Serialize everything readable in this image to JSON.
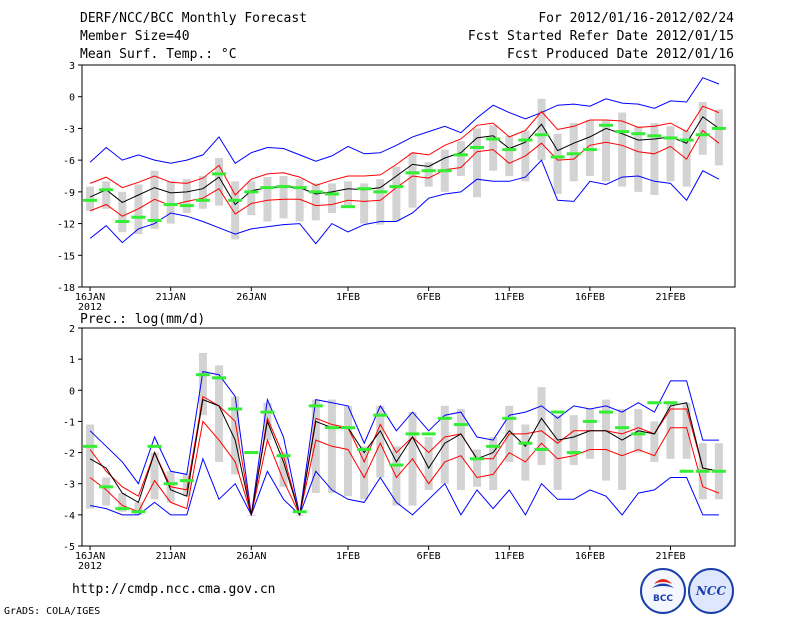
{
  "header": {
    "title": "DERF/NCC/BCC Monthly Forecast",
    "member_size": "Member Size=40",
    "variable": "Mean Surf. Temp.: °C",
    "period": "For 2012/01/16-2012/02/24",
    "started": "Fcst Started Refer Date 2012/01/15",
    "produced": "Fcst Produced Date 2012/01/16"
  },
  "footer": {
    "url": "http://cmdp.ncc.cma.gov.cn",
    "grads": "GrADS: COLA/IGES",
    "logo_bcc": "BCC",
    "logo_ncc": "NCC"
  },
  "colors": {
    "mean": "#000000",
    "member_envelope": "#0000ff",
    "spread": "#ff0000",
    "box": "#d3d3d3",
    "median": "#33ee33"
  },
  "chart_data": [
    {
      "type": "box",
      "title": "Mean Surf. Temp.: °C",
      "ylabel": "°C",
      "ylim": [
        -18,
        3
      ],
      "yticks": [
        3,
        0,
        -3,
        -6,
        -9,
        -12,
        -15,
        -18
      ],
      "xticks": [
        {
          "day": 0,
          "label": "16JAN"
        },
        {
          "day": 5,
          "label": "21JAN"
        },
        {
          "day": 10,
          "label": "26JAN"
        },
        {
          "day": 16,
          "label": "1FEB"
        },
        {
          "day": 21,
          "label": "6FEB"
        },
        {
          "day": 26,
          "label": "11FEB"
        },
        {
          "day": 31,
          "label": "16FEB"
        },
        {
          "day": 36,
          "label": "21FEB"
        }
      ],
      "year_label": "2012",
      "series": [
        {
          "name": "ensemble max",
          "values": [
            -6.2,
            -4.8,
            -6.0,
            -5.5,
            -6.0,
            -6.3,
            -6.0,
            -5.5,
            -3.8,
            -6.3,
            -5.3,
            -4.8,
            -4.9,
            -5.5,
            -6.1,
            -5.6,
            -4.7,
            -5.4,
            -5.3,
            -4.6,
            -3.8,
            -3.3,
            -2.8,
            -3.4,
            -2.0,
            -0.8,
            -1.5,
            -2.1,
            -1.5,
            -0.8,
            -0.7,
            -0.9,
            -0.2,
            -0.6,
            -0.7,
            -1.1,
            -0.4,
            -0.5,
            1.8,
            1.2
          ]
        },
        {
          "name": "mean + spread",
          "values": [
            -8.2,
            -7.6,
            -8.6,
            -8.1,
            -7.5,
            -8.1,
            -8.2,
            -7.7,
            -6.5,
            -9.3,
            -7.8,
            -7.3,
            -7.2,
            -7.6,
            -8.4,
            -7.9,
            -7.5,
            -7.5,
            -7.4,
            -6.4,
            -5.3,
            -5.5,
            -4.6,
            -4.0,
            -2.7,
            -2.5,
            -3.8,
            -3.2,
            -1.4,
            -3.1,
            -2.8,
            -2.2,
            -2.2,
            -2.3,
            -2.9,
            -2.8,
            -2.5,
            -3.3,
            -0.9,
            -1.5
          ]
        },
        {
          "name": "ensemble mean",
          "values": [
            -9.5,
            -8.8,
            -10.0,
            -9.3,
            -8.6,
            -9.1,
            -9.0,
            -8.7,
            -7.6,
            -10.2,
            -8.9,
            -8.6,
            -8.5,
            -8.6,
            -9.2,
            -9.0,
            -8.7,
            -8.8,
            -8.6,
            -7.5,
            -6.4,
            -6.6,
            -5.8,
            -5.3,
            -3.9,
            -3.7,
            -4.9,
            -4.3,
            -2.6,
            -5.1,
            -4.4,
            -3.8,
            -3.0,
            -3.5,
            -4.1,
            -4.0,
            -3.8,
            -4.4,
            -1.9,
            -3.0
          ]
        },
        {
          "name": "mean - spread",
          "values": [
            -10.8,
            -10.2,
            -11.3,
            -10.6,
            -9.7,
            -10.3,
            -9.9,
            -9.6,
            -8.7,
            -11.1,
            -10.1,
            -9.8,
            -9.7,
            -9.7,
            -10.3,
            -10.2,
            -9.8,
            -9.9,
            -9.8,
            -8.6,
            -7.5,
            -7.7,
            -6.9,
            -6.7,
            -5.2,
            -5.0,
            -6.3,
            -5.6,
            -4.4,
            -6.0,
            -5.9,
            -4.6,
            -4.3,
            -4.6,
            -5.2,
            -5.4,
            -4.7,
            -5.9,
            -3.2,
            -4.4
          ]
        },
        {
          "name": "ensemble min",
          "values": [
            -13.4,
            -12.2,
            -13.8,
            -12.5,
            -12.0,
            -11.0,
            -11.3,
            -11.8,
            -12.4,
            -13.0,
            -12.5,
            -12.3,
            -12.1,
            -12.0,
            -13.9,
            -12.0,
            -12.8,
            -12.1,
            -11.8,
            -11.8,
            -11.0,
            -9.6,
            -9.2,
            -9.0,
            -7.8,
            -8.0,
            -8.0,
            -7.6,
            -6.0,
            -9.8,
            -9.9,
            -8.0,
            -8.3,
            -7.6,
            -7.5,
            -8.0,
            -8.2,
            -9.8,
            -7.0,
            -7.8
          ]
        },
        {
          "name": "box top",
          "values": [
            -8.5,
            -8.0,
            -9.0,
            -8.3,
            -7.0,
            -8.0,
            -7.8,
            -7.5,
            -5.8,
            -8.0,
            -8.0,
            -7.6,
            -7.5,
            -7.8,
            -8.2,
            -8.2,
            -8.0,
            -8.2,
            -7.8,
            -6.6,
            -5.3,
            -6.2,
            -5.0,
            -4.2,
            -3.0,
            -2.7,
            -3.7,
            -3.2,
            -0.2,
            -3.5,
            -2.5,
            -2.2,
            -2.2,
            -1.5,
            -2.8,
            -2.5,
            -2.8,
            -3.2,
            -0.5,
            -1.2
          ]
        },
        {
          "name": "box bottom",
          "values": [
            -10.8,
            -10.6,
            -12.8,
            -13.0,
            -12.5,
            -12.0,
            -11.0,
            -10.6,
            -10.3,
            -13.5,
            -11.2,
            -11.8,
            -11.5,
            -11.8,
            -11.7,
            -11.0,
            -10.5,
            -12.0,
            -12.1,
            -11.8,
            -10.5,
            -8.5,
            -9.0,
            -7.5,
            -9.5,
            -7.0,
            -7.5,
            -8.0,
            -6.0,
            -9.2,
            -8.0,
            -7.5,
            -8.0,
            -8.5,
            -9.0,
            -9.3,
            -8.0,
            -8.5,
            -5.5,
            -6.5
          ]
        },
        {
          "name": "median",
          "values": [
            -9.8,
            -8.8,
            -11.8,
            -11.4,
            -11.7,
            -10.2,
            -10.3,
            -9.8,
            -7.3,
            -9.8,
            -9.0,
            -8.6,
            -8.5,
            -8.6,
            -9.0,
            -9.2,
            -10.4,
            -8.7,
            -9.0,
            -8.5,
            -7.2,
            -7.0,
            -7.0,
            -5.5,
            -4.8,
            -4.0,
            -5.0,
            -4.1,
            -3.6,
            -5.7,
            -5.4,
            -5.0,
            -2.7,
            -3.3,
            -3.5,
            -3.7,
            -3.9,
            -4.1,
            -3.6,
            -3.0
          ]
        }
      ]
    },
    {
      "type": "box",
      "title": "Prec.: log(mm/d)",
      "ylabel": "log(mm/d)",
      "ylim": [
        -5,
        2
      ],
      "yticks": [
        2,
        1,
        0,
        -1,
        -2,
        -3,
        -4,
        -5
      ],
      "xticks": [
        {
          "day": 0,
          "label": "16JAN"
        },
        {
          "day": 5,
          "label": "21JAN"
        },
        {
          "day": 10,
          "label": "26JAN"
        },
        {
          "day": 16,
          "label": "1FEB"
        },
        {
          "day": 21,
          "label": "6FEB"
        },
        {
          "day": 26,
          "label": "11FEB"
        },
        {
          "day": 31,
          "label": "16FEB"
        },
        {
          "day": 36,
          "label": "21FEB"
        }
      ],
      "year_label": "2012",
      "series": [
        {
          "name": "ensemble max",
          "values": [
            -1.3,
            -1.8,
            -2.3,
            -3.0,
            -1.5,
            -2.6,
            -2.7,
            0.6,
            0.5,
            -0.2,
            -4.0,
            -0.3,
            -1.5,
            -4.0,
            -0.3,
            -0.4,
            -0.5,
            -1.7,
            -0.5,
            -1.3,
            -0.7,
            -1.3,
            -0.8,
            -0.7,
            -1.5,
            -1.6,
            -0.8,
            -0.7,
            -0.5,
            -0.9,
            -0.5,
            -0.6,
            -0.5,
            -0.7,
            -0.4,
            -0.7,
            0.3,
            0.3,
            -1.6,
            -1.6
          ]
        },
        {
          "name": "mean + spread",
          "values": [
            -1.9,
            -2.6,
            -3.1,
            -3.4,
            -2.0,
            -3.1,
            -3.2,
            -0.2,
            -0.5,
            -1.0,
            -4.0,
            -0.9,
            -2.1,
            -4.0,
            -0.9,
            -1.1,
            -1.2,
            -2.3,
            -1.1,
            -2.0,
            -1.5,
            -2.0,
            -1.5,
            -1.4,
            -2.2,
            -2.2,
            -1.4,
            -1.4,
            -1.3,
            -1.7,
            -1.3,
            -1.3,
            -1.3,
            -1.4,
            -1.2,
            -1.4,
            -0.6,
            -0.6,
            -2.5,
            -2.6
          ]
        },
        {
          "name": "ensemble mean",
          "values": [
            -2.2,
            -2.5,
            -3.3,
            -3.6,
            -2.0,
            -3.2,
            -3.4,
            -0.3,
            -0.5,
            -1.6,
            -4.0,
            -1.0,
            -2.3,
            -4.0,
            -1.0,
            -1.2,
            -1.2,
            -2.0,
            -1.3,
            -2.3,
            -1.5,
            -2.5,
            -1.7,
            -1.4,
            -2.2,
            -2.0,
            -1.3,
            -1.8,
            -0.9,
            -1.6,
            -1.5,
            -1.3,
            -1.3,
            -1.6,
            -1.3,
            -1.4,
            -0.5,
            -0.4,
            -2.5,
            -2.6
          ]
        },
        {
          "name": "mean - spread",
          "values": [
            -2.8,
            -3.2,
            -3.7,
            -3.9,
            -2.9,
            -3.6,
            -3.8,
            -1.0,
            -1.6,
            -2.3,
            -4.0,
            -1.6,
            -2.9,
            -4.0,
            -1.6,
            -1.8,
            -1.9,
            -2.8,
            -1.7,
            -2.8,
            -2.2,
            -3.0,
            -2.3,
            -2.1,
            -2.8,
            -2.7,
            -2.0,
            -2.3,
            -1.7,
            -2.2,
            -2.1,
            -1.9,
            -1.9,
            -2.1,
            -1.9,
            -2.1,
            -1.2,
            -1.2,
            -3.1,
            -3.3
          ]
        },
        {
          "name": "ensemble min",
          "values": [
            -3.7,
            -3.8,
            -4.0,
            -4.0,
            -3.6,
            -4.0,
            -4.0,
            -2.2,
            -3.5,
            -3.0,
            -4.0,
            -2.6,
            -3.5,
            -4.0,
            -2.6,
            -3.2,
            -3.5,
            -3.6,
            -2.8,
            -3.6,
            -4.0,
            -3.5,
            -3.0,
            -4.0,
            -3.2,
            -3.8,
            -3.2,
            -4.0,
            -3.0,
            -3.5,
            -3.5,
            -3.2,
            -3.4,
            -4.0,
            -3.3,
            -3.2,
            -2.8,
            -2.8,
            -4.0,
            -4.0
          ]
        },
        {
          "name": "box top",
          "values": [
            -1.1,
            -2.8,
            -3.3,
            -3.6,
            -2.0,
            -2.6,
            -2.7,
            1.2,
            0.8,
            -0.2,
            -4.0,
            -0.4,
            -2.0,
            -4.0,
            -0.3,
            -0.3,
            -0.5,
            -1.8,
            -0.5,
            -1.8,
            -0.7,
            -1.5,
            -0.5,
            -0.6,
            -1.9,
            -1.5,
            -0.5,
            -1.1,
            0.1,
            -0.8,
            -0.8,
            -0.6,
            -0.3,
            -0.6,
            -0.6,
            -1.0,
            -0.4,
            -0.4,
            -1.7,
            -1.7
          ]
        },
        {
          "name": "box bottom",
          "values": [
            -3.8,
            -3.7,
            -3.9,
            -4.0,
            -3.5,
            -3.6,
            -3.4,
            -0.8,
            -2.3,
            -2.7,
            -4.0,
            -1.6,
            -3.1,
            -4.0,
            -3.3,
            -3.3,
            -3.4,
            -3.5,
            -2.8,
            -3.7,
            -3.7,
            -3.2,
            -3.0,
            -3.2,
            -3.1,
            -3.2,
            -2.3,
            -2.9,
            -2.4,
            -3.2,
            -2.4,
            -2.2,
            -2.9,
            -3.2,
            -2.0,
            -2.3,
            -2.2,
            -2.2,
            -3.5,
            -3.5
          ]
        },
        {
          "name": "median",
          "values": [
            -1.8,
            -3.1,
            -3.8,
            -3.9,
            -1.8,
            -3.0,
            -2.9,
            0.5,
            0.4,
            -0.6,
            -2.0,
            -0.7,
            -2.1,
            -3.9,
            -0.5,
            -1.2,
            -1.2,
            -1.9,
            -0.8,
            -2.4,
            -1.4,
            -1.4,
            -0.9,
            -1.1,
            -2.2,
            -1.8,
            -0.9,
            -1.7,
            -1.9,
            -0.7,
            -2.0,
            -1.0,
            -0.7,
            -1.2,
            -1.4,
            -0.4,
            -0.4,
            -2.6,
            -2.6,
            -2.6
          ]
        }
      ]
    }
  ]
}
